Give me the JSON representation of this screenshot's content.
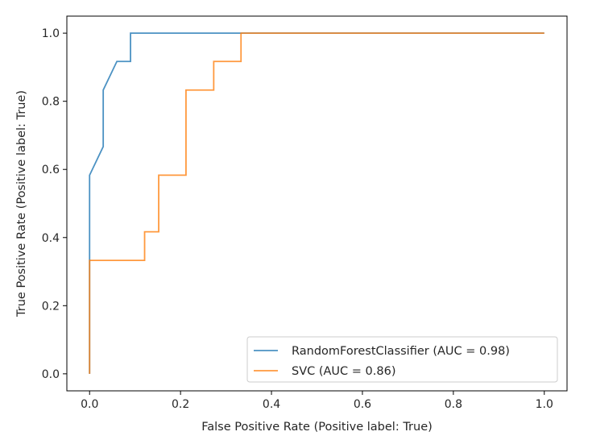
{
  "chart_data": {
    "type": "line",
    "title": "",
    "xlabel": "False Positive Rate (Positive label: True)",
    "ylabel": "True Positive Rate (Positive label: True)",
    "xlim": [
      -0.05,
      1.05
    ],
    "ylim": [
      -0.05,
      1.05
    ],
    "xticks": [
      "0.0",
      "0.2",
      "0.4",
      "0.6",
      "0.8",
      "1.0"
    ],
    "yticks": [
      "0.0",
      "0.2",
      "0.4",
      "0.6",
      "0.8",
      "1.0"
    ],
    "grid": false,
    "legend_position": "lower-right",
    "series": [
      {
        "name": "RandomForestClassifier (AUC = 0.98)",
        "color": "#1f77b4",
        "x": [
          0,
          0,
          0,
          0.03,
          0.03,
          0.06,
          0.09,
          0.09,
          1.0
        ],
        "y": [
          0,
          0.333,
          0.583,
          0.667,
          0.833,
          0.917,
          0.917,
          1.0,
          1.0
        ]
      },
      {
        "name": "SVC (AUC = 0.86)",
        "color": "#ff7f0e",
        "x": [
          0,
          0,
          0.121,
          0.121,
          0.152,
          0.152,
          0.212,
          0.212,
          0.273,
          0.273,
          0.333,
          0.333,
          1.0
        ],
        "y": [
          0,
          0.333,
          0.333,
          0.417,
          0.417,
          0.583,
          0.583,
          0.833,
          0.833,
          0.917,
          0.917,
          1.0,
          1.0
        ]
      }
    ]
  }
}
